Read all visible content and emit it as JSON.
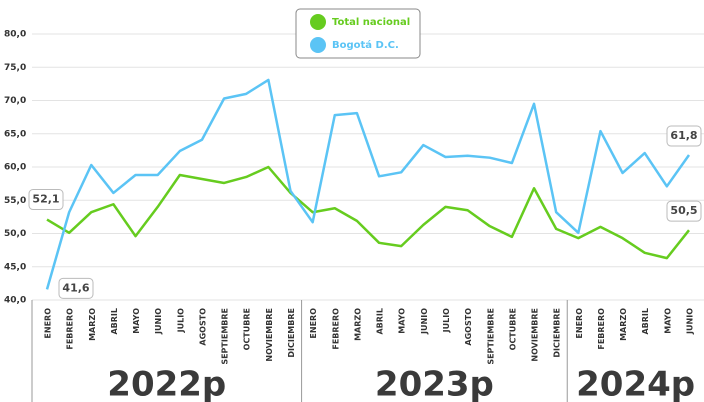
{
  "chart_data": {
    "type": "line",
    "categories": [
      "ENERO",
      "FEBRERO",
      "MARZO",
      "ABRIL",
      "MAYO",
      "JUNIO",
      "JULIO",
      "AGOSTO",
      "SEPTIEMBRE",
      "OCTUBRE",
      "NOVIEMBRE",
      "DICIEMBRE",
      "ENERO",
      "FEBRERO",
      "MARZO",
      "ABRIL",
      "MAYO",
      "JUNIO",
      "JULIO",
      "AGOSTO",
      "SEPTIEMBRE",
      "OCTUBRE",
      "NOVIEMBRE",
      "DICIEMBRE",
      "ENERO",
      "FEBRERO",
      "MARZO",
      "ABRIL",
      "MAYO",
      "JUNIO"
    ],
    "groups": [
      {
        "label": "2022p",
        "count": 12
      },
      {
        "label": "2023p",
        "count": 12
      },
      {
        "label": "2024p",
        "count": 6
      }
    ],
    "series": [
      {
        "name": "Total nacional",
        "color": "#66cc1f",
        "values": [
          52.1,
          50.1,
          53.2,
          54.4,
          49.6,
          54.0,
          58.8,
          58.2,
          57.6,
          58.5,
          60.0,
          56.1,
          53.2,
          53.8,
          51.9,
          48.6,
          48.1,
          51.3,
          54.0,
          53.5,
          51.1,
          49.5,
          56.8,
          50.7,
          49.3,
          51.0,
          49.3,
          47.1,
          46.3,
          50.5
        ],
        "value_labels": [
          "52,1",
          null,
          null,
          null,
          null,
          null,
          null,
          null,
          null,
          null,
          null,
          null,
          null,
          null,
          null,
          null,
          null,
          null,
          null,
          null,
          null,
          null,
          null,
          null,
          null,
          null,
          null,
          null,
          null,
          "50,5"
        ]
      },
      {
        "name": "Bogotá D.C.",
        "color": "#5bc4f5",
        "values": [
          41.6,
          53.2,
          60.3,
          56.1,
          58.8,
          58.8,
          62.4,
          64.1,
          70.3,
          71.0,
          73.1,
          56.4,
          51.7,
          67.8,
          68.1,
          58.6,
          59.2,
          63.3,
          61.5,
          61.7,
          61.4,
          60.6,
          69.5,
          53.2,
          50.1,
          65.4,
          59.1,
          62.1,
          57.1,
          61.8
        ],
        "value_labels": [
          "41,6",
          null,
          null,
          null,
          null,
          null,
          null,
          null,
          null,
          null,
          null,
          null,
          null,
          null,
          null,
          null,
          null,
          null,
          null,
          null,
          null,
          null,
          null,
          null,
          null,
          null,
          null,
          null,
          null,
          "61,8"
        ]
      }
    ],
    "ylim": [
      40,
      80
    ],
    "yticks": [
      {
        "value": 40,
        "label": "40,0"
      },
      {
        "value": 45,
        "label": "45,0"
      },
      {
        "value": 50,
        "label": "50,0"
      },
      {
        "value": 55,
        "label": "55,0"
      },
      {
        "value": 60,
        "label": "60,0"
      },
      {
        "value": 65,
        "label": "65,0"
      },
      {
        "value": 70,
        "label": "70,0"
      },
      {
        "value": 75,
        "label": "75,0"
      },
      {
        "value": 80,
        "label": "80,0"
      }
    ],
    "grid": true,
    "legend": "top"
  }
}
